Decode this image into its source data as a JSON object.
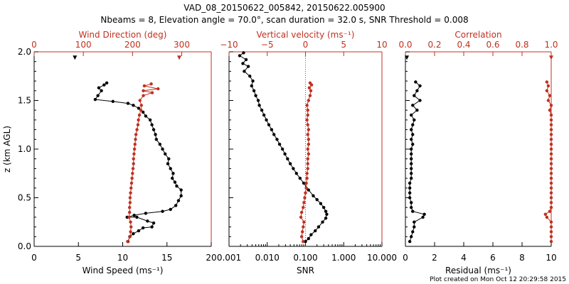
{
  "title_line1": "VAD_08_20150622_005842, 20150622.005900",
  "title_line2": "Nbeams = 8, Elevation angle = 70.0°, scan duration = 32.0 s, SNR Threshold = 0.008",
  "footer": "Plot created on Mon Oct 12 20:29:58 2015",
  "colors": {
    "black": "#000000",
    "red": "#c03020"
  },
  "chart_data": [
    {
      "type": "scatter",
      "ylabel": "z (km AGL)",
      "ylim": [
        0,
        2
      ],
      "yticks": [
        "0.0",
        "0.5",
        "1.0",
        "1.5",
        "2.0"
      ],
      "bottom_axis": {
        "label": "Wind Speed (ms⁻¹)",
        "range": [
          0,
          20
        ],
        "ticks": [
          "0",
          "5",
          "10",
          "15",
          "20"
        ]
      },
      "top_axis": {
        "label": "Wind Direction (deg)",
        "range": [
          0,
          360
        ],
        "ticks": [
          "0",
          "100",
          "200",
          "300"
        ]
      },
      "series": [
        {
          "axis": "bottom",
          "color": "#000000",
          "points": [
            [
              10.6,
              0.05
            ],
            [
              10.8,
              0.1
            ],
            [
              11.2,
              0.13
            ],
            [
              11.8,
              0.16
            ],
            [
              12.3,
              0.19
            ],
            [
              13.3,
              0.2
            ],
            [
              13.5,
              0.24
            ],
            [
              12.8,
              0.26
            ],
            [
              11.6,
              0.3
            ],
            [
              10.5,
              0.3
            ],
            [
              11.3,
              0.32
            ],
            [
              12.6,
              0.34
            ],
            [
              14.5,
              0.36
            ],
            [
              15.4,
              0.38
            ],
            [
              16,
              0.42
            ],
            [
              16.3,
              0.47
            ],
            [
              16.6,
              0.52
            ],
            [
              16.6,
              0.58
            ],
            [
              16.1,
              0.62
            ],
            [
              15.9,
              0.66
            ],
            [
              15.6,
              0.7
            ],
            [
              15.7,
              0.75
            ],
            [
              15.4,
              0.8
            ],
            [
              15.1,
              0.85
            ],
            [
              15.2,
              0.9
            ],
            [
              14.8,
              0.95
            ],
            [
              14.5,
              1.0
            ],
            [
              14.2,
              1.05
            ],
            [
              13.8,
              1.1
            ],
            [
              13.7,
              1.15
            ],
            [
              13.5,
              1.2
            ],
            [
              13.3,
              1.25
            ],
            [
              13.1,
              1.3
            ],
            [
              12.6,
              1.34
            ],
            [
              12.3,
              1.38
            ],
            [
              11.8,
              1.42
            ],
            [
              11.2,
              1.45
            ],
            [
              10.6,
              1.47
            ],
            [
              8.9,
              1.49
            ],
            [
              6.9,
              1.51
            ],
            [
              7.2,
              1.55
            ],
            [
              7.6,
              1.6
            ],
            [
              7.3,
              1.63
            ],
            [
              7.9,
              1.66
            ],
            [
              8.2,
              1.68
            ]
          ]
        },
        {
          "axis": "top",
          "color": "#c03020",
          "points": [
            [
              190,
              0.05
            ],
            [
              195,
              0.1
            ],
            [
              196,
              0.15
            ],
            [
              197,
              0.2
            ],
            [
              196,
              0.25
            ],
            [
              193,
              0.3
            ],
            [
              194,
              0.35
            ],
            [
              194,
              0.4
            ],
            [
              195,
              0.45
            ],
            [
              195,
              0.5
            ],
            [
              196,
              0.55
            ],
            [
              197,
              0.6
            ],
            [
              198,
              0.65
            ],
            [
              199,
              0.7
            ],
            [
              200,
              0.75
            ],
            [
              201,
              0.8
            ],
            [
              202,
              0.85
            ],
            [
              202,
              0.9
            ],
            [
              203,
              0.95
            ],
            [
              204,
              1.0
            ],
            [
              205,
              1.05
            ],
            [
              206,
              1.1
            ],
            [
              207,
              1.15
            ],
            [
              209,
              1.2
            ],
            [
              211,
              1.25
            ],
            [
              212,
              1.3
            ],
            [
              214,
              1.35
            ],
            [
              217,
              1.4
            ],
            [
              218,
              1.45
            ],
            [
              215,
              1.5
            ],
            [
              222,
              1.55
            ],
            [
              240,
              1.58
            ],
            [
              222,
              1.6
            ],
            [
              252,
              1.62
            ],
            [
              224,
              1.65
            ],
            [
              238,
              1.67
            ]
          ]
        }
      ],
      "isolated_points": [
        {
          "axis": "bottom",
          "color": "#000000",
          "point": [
            4.6,
            1.94
          ]
        },
        {
          "axis": "top",
          "color": "#c03020",
          "point": [
            295,
            1.94
          ]
        }
      ]
    },
    {
      "type": "scatter",
      "ylim": [
        0,
        2
      ],
      "xscale_bottom": "log",
      "bottom_axis": {
        "label": "SNR",
        "range": [
          0.001,
          10
        ],
        "ticks": [
          "0.001",
          "0.010",
          "0.100",
          "1.000",
          "10.000"
        ]
      },
      "top_axis": {
        "label": "Vertical velocity (ms⁻¹)",
        "range": [
          -10,
          10
        ],
        "ticks": [
          "−10",
          "−5",
          "0",
          "5",
          "10"
        ]
      },
      "zero_line": {
        "axis": "top",
        "value": 0
      },
      "series": [
        {
          "axis": "bottom",
          "color": "#000000",
          "points": [
            [
              0.1,
              0.05
            ],
            [
              0.12,
              0.08
            ],
            [
              0.14,
              0.12
            ],
            [
              0.18,
              0.16
            ],
            [
              0.22,
              0.2
            ],
            [
              0.28,
              0.25
            ],
            [
              0.34,
              0.29
            ],
            [
              0.36,
              0.33
            ],
            [
              0.34,
              0.36
            ],
            [
              0.3,
              0.4
            ],
            [
              0.25,
              0.44
            ],
            [
              0.2,
              0.48
            ],
            [
              0.16,
              0.52
            ],
            [
              0.12,
              0.58
            ],
            [
              0.09,
              0.65
            ],
            [
              0.072,
              0.7
            ],
            [
              0.058,
              0.75
            ],
            [
              0.048,
              0.8
            ],
            [
              0.04,
              0.85
            ],
            [
              0.034,
              0.9
            ],
            [
              0.029,
              0.95
            ],
            [
              0.025,
              1.0
            ],
            [
              0.021,
              1.05
            ],
            [
              0.018,
              1.1
            ],
            [
              0.015,
              1.15
            ],
            [
              0.013,
              1.2
            ],
            [
              0.011,
              1.25
            ],
            [
              0.0095,
              1.3
            ],
            [
              0.0082,
              1.35
            ],
            [
              0.0072,
              1.4
            ],
            [
              0.0062,
              1.45
            ],
            [
              0.0058,
              1.5
            ],
            [
              0.005,
              1.55
            ],
            [
              0.0045,
              1.6
            ],
            [
              0.0039,
              1.65
            ],
            [
              0.0042,
              1.7
            ],
            [
              0.0035,
              1.75
            ],
            [
              0.0025,
              1.8
            ],
            [
              0.0032,
              1.85
            ],
            [
              0.0023,
              1.88
            ],
            [
              0.0028,
              1.92
            ],
            [
              0.0019,
              1.96
            ],
            [
              0.0024,
              1.99
            ]
          ]
        },
        {
          "axis": "top",
          "color": "#c03020",
          "points": [
            [
              -0.3,
              0.05
            ],
            [
              -0.5,
              0.1
            ],
            [
              -0.4,
              0.15
            ],
            [
              -0.3,
              0.2
            ],
            [
              -0.2,
              0.25
            ],
            [
              -0.6,
              0.3
            ],
            [
              -0.5,
              0.35
            ],
            [
              -0.3,
              0.4
            ],
            [
              -0.2,
              0.45
            ],
            [
              -0.1,
              0.5
            ],
            [
              0,
              0.55
            ],
            [
              0.1,
              0.6
            ],
            [
              0.1,
              0.65
            ],
            [
              0.2,
              0.7
            ],
            [
              0.2,
              0.75
            ],
            [
              0.3,
              0.8
            ],
            [
              0.3,
              0.85
            ],
            [
              0.3,
              0.9
            ],
            [
              0.4,
              0.95
            ],
            [
              0.3,
              1.0
            ],
            [
              0.4,
              1.05
            ],
            [
              0.4,
              1.1
            ],
            [
              0.3,
              1.15
            ],
            [
              0.4,
              1.2
            ],
            [
              0.3,
              1.25
            ],
            [
              0.2,
              1.3
            ],
            [
              0.3,
              1.35
            ],
            [
              0.3,
              1.4
            ],
            [
              0.2,
              1.45
            ],
            [
              0.4,
              1.5
            ],
            [
              0.6,
              1.55
            ],
            [
              0.7,
              1.6
            ],
            [
              0.5,
              1.63
            ],
            [
              0.8,
              1.66
            ],
            [
              0.6,
              1.68
            ]
          ]
        }
      ]
    },
    {
      "type": "scatter",
      "ylim": [
        0,
        2
      ],
      "bottom_axis": {
        "label": "Residual (ms⁻¹)",
        "range": [
          0,
          10
        ],
        "ticks": [
          "0",
          "2",
          "4",
          "6",
          "8",
          "10"
        ]
      },
      "top_axis": {
        "label": "Correlation",
        "range": [
          0,
          1
        ],
        "ticks": [
          "0.0",
          "0.2",
          "0.4",
          "0.6",
          "0.8",
          "1.0"
        ]
      },
      "series": [
        {
          "axis": "bottom",
          "color": "#000000",
          "points": [
            [
              0.3,
              0.05
            ],
            [
              0.4,
              0.1
            ],
            [
              0.5,
              0.15
            ],
            [
              0.6,
              0.2
            ],
            [
              0.6,
              0.25
            ],
            [
              1.2,
              0.3
            ],
            [
              1.3,
              0.33
            ],
            [
              0.5,
              0.36
            ],
            [
              0.4,
              0.4
            ],
            [
              0.4,
              0.45
            ],
            [
              0.3,
              0.5
            ],
            [
              0.3,
              0.55
            ],
            [
              0.3,
              0.6
            ],
            [
              0.3,
              0.65
            ],
            [
              0.4,
              0.7
            ],
            [
              0.4,
              0.75
            ],
            [
              0.4,
              0.8
            ],
            [
              0.4,
              0.85
            ],
            [
              0.4,
              0.9
            ],
            [
              0.4,
              0.95
            ],
            [
              0.4,
              1.0
            ],
            [
              0.5,
              1.05
            ],
            [
              0.4,
              1.1
            ],
            [
              0.5,
              1.15
            ],
            [
              0.4,
              1.2
            ],
            [
              0.5,
              1.25
            ],
            [
              0.6,
              1.3
            ],
            [
              0.4,
              1.35
            ],
            [
              0.8,
              1.4
            ],
            [
              0.5,
              1.45
            ],
            [
              1.0,
              1.5
            ],
            [
              0.6,
              1.55
            ],
            [
              0.8,
              1.6
            ],
            [
              1.0,
              1.65
            ],
            [
              0.7,
              1.69
            ]
          ]
        },
        {
          "axis": "top",
          "color": "#c03020",
          "points": [
            [
              1.0,
              0.05
            ],
            [
              1.0,
              0.1
            ],
            [
              1.0,
              0.15
            ],
            [
              1.0,
              0.2
            ],
            [
              1.0,
              0.25
            ],
            [
              0.97,
              0.3
            ],
            [
              0.96,
              0.33
            ],
            [
              0.99,
              0.36
            ],
            [
              1.0,
              0.4
            ],
            [
              1.0,
              0.45
            ],
            [
              1.0,
              0.5
            ],
            [
              1.0,
              0.55
            ],
            [
              1.0,
              0.6
            ],
            [
              1.0,
              0.65
            ],
            [
              1.0,
              0.7
            ],
            [
              1.0,
              0.75
            ],
            [
              1.0,
              0.8
            ],
            [
              1.0,
              0.85
            ],
            [
              1.0,
              0.9
            ],
            [
              1.0,
              0.95
            ],
            [
              1.0,
              1.0
            ],
            [
              1.0,
              1.05
            ],
            [
              1.0,
              1.1
            ],
            [
              1.0,
              1.15
            ],
            [
              1.0,
              1.2
            ],
            [
              1.0,
              1.25
            ],
            [
              1.0,
              1.3
            ],
            [
              1.0,
              1.35
            ],
            [
              0.99,
              1.4
            ],
            [
              1.0,
              1.45
            ],
            [
              0.98,
              1.5
            ],
            [
              0.99,
              1.55
            ],
            [
              0.97,
              1.6
            ],
            [
              0.98,
              1.65
            ],
            [
              0.97,
              1.69
            ]
          ]
        }
      ],
      "isolated_points": [
        {
          "axis": "bottom",
          "color": "#000000",
          "point": [
            0.1,
            1.94
          ]
        },
        {
          "axis": "top",
          "color": "#c03020",
          "point": [
            1.0,
            1.94
          ]
        }
      ]
    }
  ]
}
